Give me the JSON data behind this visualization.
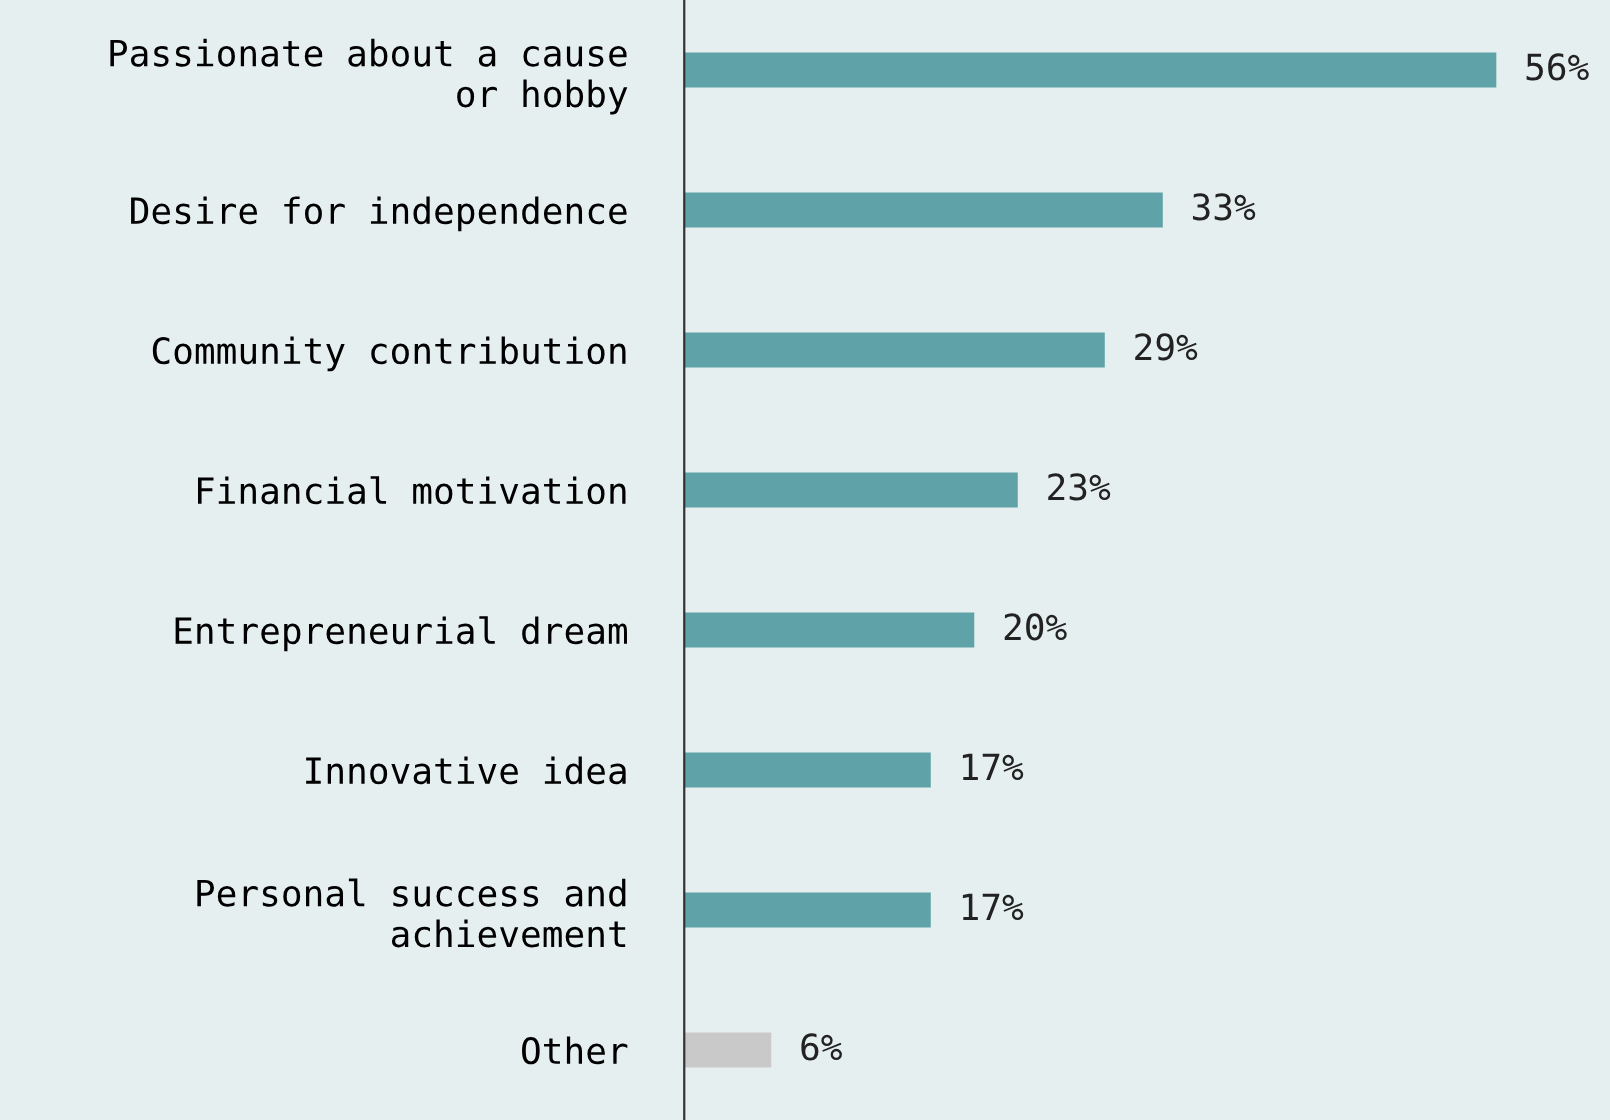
{
  "chart_data": {
    "type": "bar",
    "orientation": "horizontal",
    "categories": [
      "Passionate about a cause\nor hobby",
      "Desire for independence",
      "Community contribution",
      "Financial motivation",
      "Entrepreneurial dream",
      "Innovative idea",
      "Personal success and\nachievement",
      "Other"
    ],
    "values": [
      56,
      33,
      29,
      23,
      20,
      17,
      17,
      6
    ],
    "colors": [
      "#5fa3a8",
      "#5fa3a8",
      "#5fa3a8",
      "#5fa3a8",
      "#5fa3a8",
      "#5fa3a8",
      "#5fa3a8",
      "#c9c9c9"
    ],
    "value_labels": [
      "56%",
      "33%",
      "29%",
      "23%",
      "20%",
      "17%",
      "17%",
      "6%"
    ],
    "grid": false,
    "legend": false
  }
}
